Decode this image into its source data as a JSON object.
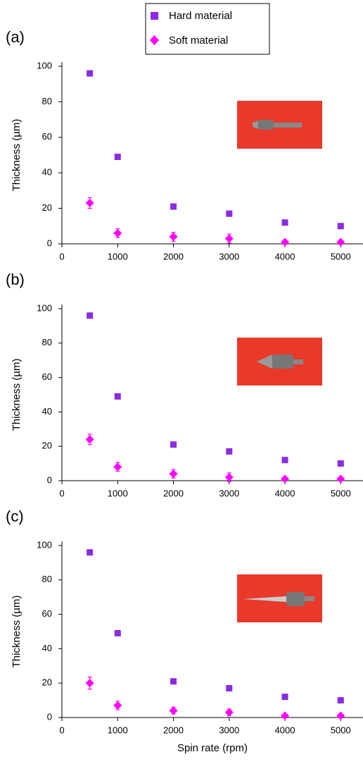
{
  "chart_data": [
    {
      "type": "scatter",
      "panel_label": "(a)",
      "y_label": "Thickness (µm)",
      "x": [
        500,
        1000,
        2000,
        3000,
        4000,
        5000
      ],
      "series": [
        {
          "name": "Hard material",
          "color": "#8a2be2",
          "marker": "square",
          "values": [
            96,
            49,
            21,
            17,
            12,
            10
          ]
        },
        {
          "name": "Soft material",
          "color": "#ff00ff",
          "marker": "diamond",
          "values": [
            23,
            6,
            4,
            3,
            1,
            1
          ],
          "errors": [
            3,
            2.5,
            2.5,
            2.5,
            0.5,
            0.5
          ]
        }
      ],
      "xlim": [
        0,
        5400
      ],
      "ylim": [
        0,
        100
      ],
      "xticks": [
        0,
        1000,
        2000,
        3000,
        4000,
        5000
      ],
      "yticks": [
        0,
        20,
        40,
        60,
        80,
        100
      ]
    },
    {
      "type": "scatter",
      "panel_label": "(b)",
      "y_label": "Thickness (µm)",
      "x": [
        500,
        1000,
        2000,
        3000,
        4000,
        5000
      ],
      "series": [
        {
          "color": "#8a2be2",
          "marker": "square",
          "values": [
            96,
            49,
            21,
            17,
            12,
            10
          ]
        },
        {
          "color": "#ff00ff",
          "marker": "diamond",
          "values": [
            24,
            8,
            4,
            2,
            1,
            1
          ],
          "errors": [
            3,
            2.5,
            2.5,
            2.5,
            0.5,
            0.5
          ]
        }
      ],
      "xlim": [
        0,
        5400
      ],
      "ylim": [
        0,
        100
      ],
      "xticks": [
        0,
        1000,
        2000,
        3000,
        4000,
        5000
      ],
      "yticks": [
        0,
        20,
        40,
        60,
        80,
        100
      ]
    },
    {
      "type": "scatter",
      "panel_label": "(c)",
      "y_label": "Thickness (µm)",
      "x_label": "Spin rate (rpm)",
      "x": [
        500,
        1000,
        2000,
        3000,
        4000,
        5000
      ],
      "series": [
        {
          "color": "#8a2be2",
          "marker": "square",
          "values": [
            96,
            49,
            21,
            17,
            12,
            10
          ]
        },
        {
          "color": "#ff00ff",
          "marker": "diamond",
          "values": [
            20,
            7,
            4,
            3,
            1,
            1
          ],
          "errors": [
            3.5,
            2.5,
            2,
            2,
            0.5,
            0.5
          ]
        }
      ],
      "xlim": [
        0,
        5400
      ],
      "ylim": [
        0,
        100
      ],
      "xticks": [
        0,
        1000,
        2000,
        3000,
        4000,
        5000
      ],
      "yticks": [
        0,
        20,
        40,
        60,
        80,
        100
      ]
    }
  ]
}
